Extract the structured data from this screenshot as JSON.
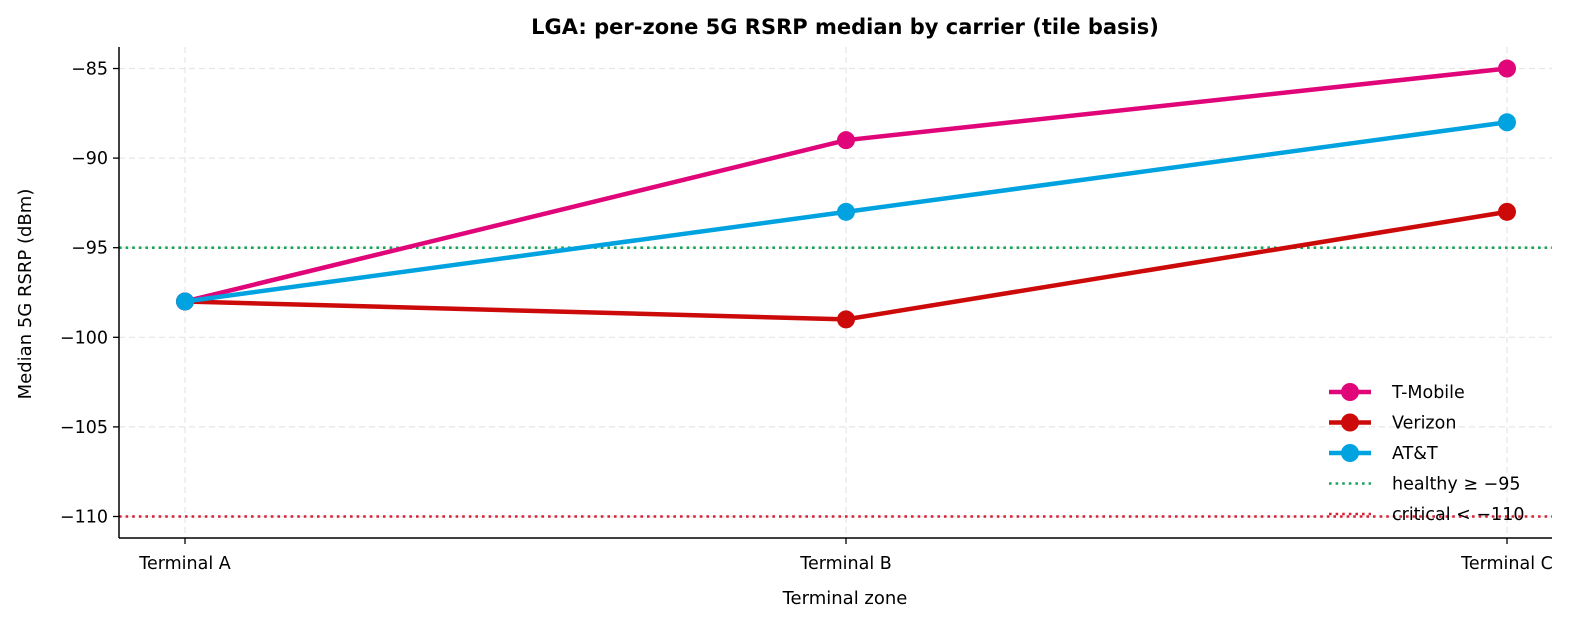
{
  "chart_data": {
    "type": "line",
    "title": "LGA: per-zone 5G RSRP median by carrier (tile basis)",
    "xlabel": "Terminal zone",
    "ylabel": "Median 5G RSRP (dBm)",
    "categories": [
      "Terminal A",
      "Terminal B",
      "Terminal C"
    ],
    "ylim": [
      -111.2,
      -83.8
    ],
    "yticks": [
      -85,
      -90,
      -95,
      -100,
      -105,
      -110
    ],
    "ytick_labels": [
      "−85",
      "−90",
      "−95",
      "−100",
      "−105",
      "−110"
    ],
    "grid": true,
    "legend_position": "lower-right",
    "series": [
      {
        "name": "T-Mobile",
        "color": "#e0067a",
        "values": [
          -98,
          -89,
          -85
        ]
      },
      {
        "name": "Verizon",
        "color": "#cc0a0a",
        "values": [
          -98,
          -99,
          -93
        ]
      },
      {
        "name": "AT&T",
        "color": "#00a3df",
        "values": [
          -98,
          -93,
          -88
        ]
      }
    ],
    "reference_lines": [
      {
        "name": "healthy ≥ −95",
        "value": -95,
        "color": "#1aa35a"
      },
      {
        "name": "critical < −110",
        "value": -110,
        "color": "#d62035"
      }
    ]
  }
}
